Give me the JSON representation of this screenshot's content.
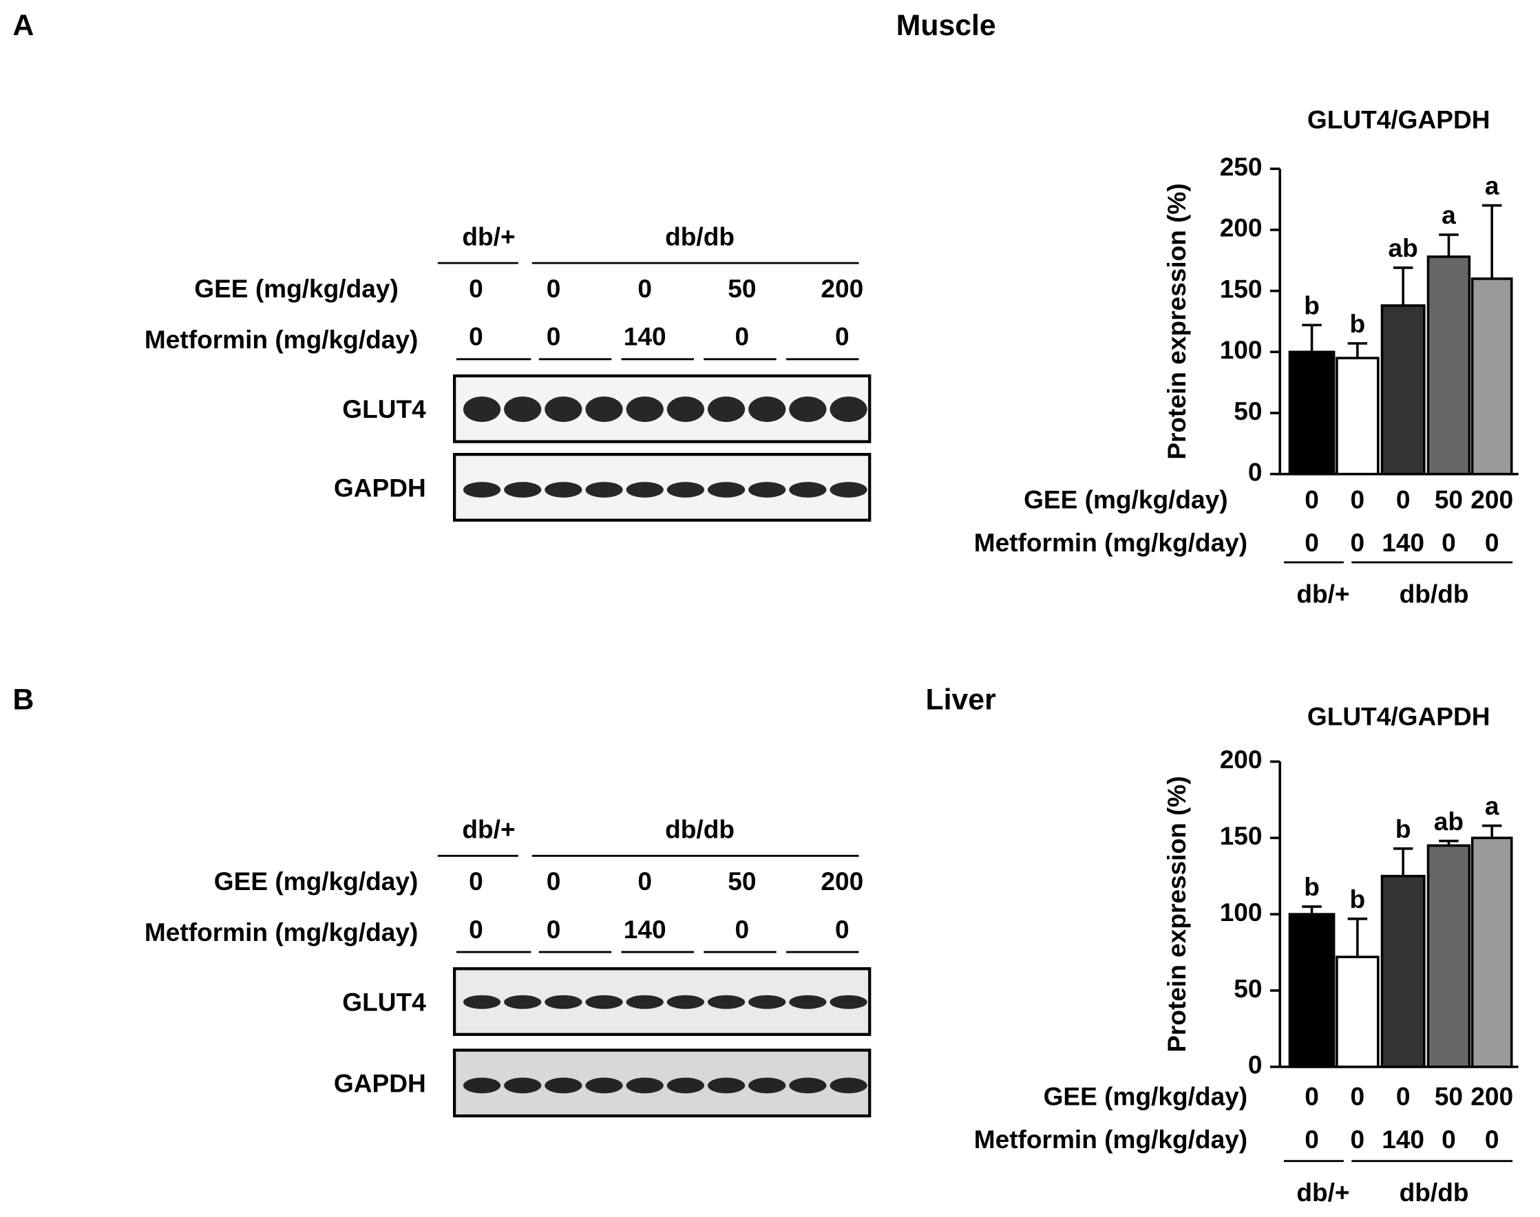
{
  "panels": [
    {
      "label": "A",
      "tissue": "Muscle",
      "blot": {
        "groups": [
          "db/+",
          "db/db"
        ],
        "gee_label": "GEE (mg/kg/day)",
        "metformin_label": "Metformin (mg/kg/day)",
        "gee": [
          0,
          0,
          0,
          50,
          200
        ],
        "metformin": [
          0,
          0,
          140,
          0,
          0
        ],
        "bands": [
          "GLUT4",
          "GAPDH"
        ]
      },
      "chart": {
        "type": "bar",
        "title": "GLUT4/GAPDH",
        "y_label": "Protein expression (%)",
        "ylim": [
          0,
          250
        ],
        "yticks": [
          0,
          50,
          100,
          150,
          200,
          250
        ],
        "values": [
          100,
          95,
          138,
          178,
          160
        ],
        "errors": [
          22,
          12,
          31,
          18,
          60
        ],
        "significance": [
          "b",
          "b",
          "ab",
          "a",
          "a"
        ],
        "colors": [
          "#000000",
          "#ffffff",
          "#333333",
          "#666666",
          "#999999"
        ],
        "gee_label": "GEE (mg/kg/day)",
        "metformin_label": "Metformin (mg/kg/day)",
        "gee": [
          0,
          0,
          0,
          50,
          200
        ],
        "metformin": [
          0,
          0,
          140,
          0,
          0
        ],
        "groups": [
          "db/+",
          "db/db"
        ]
      }
    },
    {
      "label": "B",
      "tissue": "Liver",
      "blot": {
        "groups": [
          "db/+",
          "db/db"
        ],
        "gee_label": "GEE (mg/kg/day)",
        "metformin_label": "Metformin (mg/kg/day)",
        "gee": [
          0,
          0,
          0,
          50,
          200
        ],
        "metformin": [
          0,
          0,
          140,
          0,
          0
        ],
        "bands": [
          "GLUT4",
          "GAPDH"
        ]
      },
      "chart": {
        "type": "bar",
        "title": "GLUT4/GAPDH",
        "y_label": "Protein expression (%)",
        "ylim": [
          0,
          200
        ],
        "yticks": [
          0,
          50,
          100,
          150,
          200
        ],
        "values": [
          100,
          72,
          125,
          145,
          150
        ],
        "errors": [
          5,
          25,
          18,
          3,
          8
        ],
        "significance": [
          "b",
          "b",
          "b",
          "ab",
          "a"
        ],
        "colors": [
          "#000000",
          "#ffffff",
          "#333333",
          "#666666",
          "#999999"
        ],
        "gee_label": "GEE (mg/kg/day)",
        "metformin_label": "Metformin (mg/kg/day)",
        "gee": [
          0,
          0,
          0,
          50,
          200
        ],
        "metformin": [
          0,
          0,
          140,
          0,
          0
        ],
        "groups": [
          "db/+",
          "db/db"
        ]
      }
    }
  ]
}
